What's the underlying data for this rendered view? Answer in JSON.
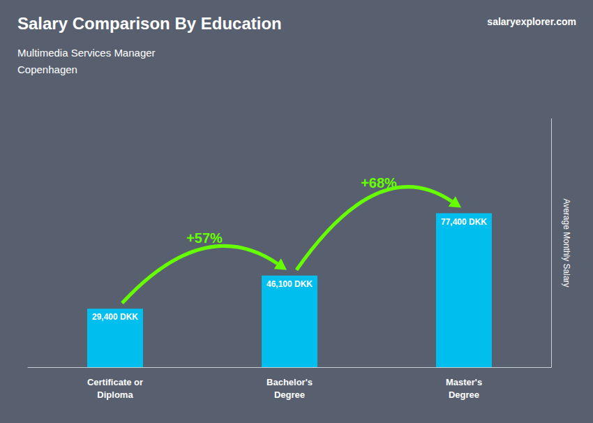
{
  "chart_data": {
    "type": "bar",
    "title": "Salary Comparison By Education",
    "subtitle": "Multimedia Services Manager\nCopenhagen",
    "ylabel": "Average Monthly Salary",
    "categories": [
      "Certificate or\nDiploma",
      "Bachelor's\nDegree",
      "Master's\nDegree"
    ],
    "values": [
      29400,
      46100,
      77400
    ],
    "value_labels": [
      "29,400 DKK",
      "46,100 DKK",
      "77,400 DKK"
    ],
    "data_labels": true,
    "color": "#00BFEE",
    "ylim": [
      0,
      125000
    ],
    "tick_labels": "x",
    "grid": false,
    "annotations": [
      {
        "text": "salaryexplorer.com"
      },
      {
        "text": "+57%",
        "between": [
          "Certificate or\nDiploma",
          "Bachelor's\nDegree"
        ],
        "color": "#66FF00"
      },
      {
        "text": "+68%",
        "between": [
          "Bachelor's\nDegree",
          "Master's\nDegree"
        ],
        "color": "#66FF00"
      }
    ]
  }
}
